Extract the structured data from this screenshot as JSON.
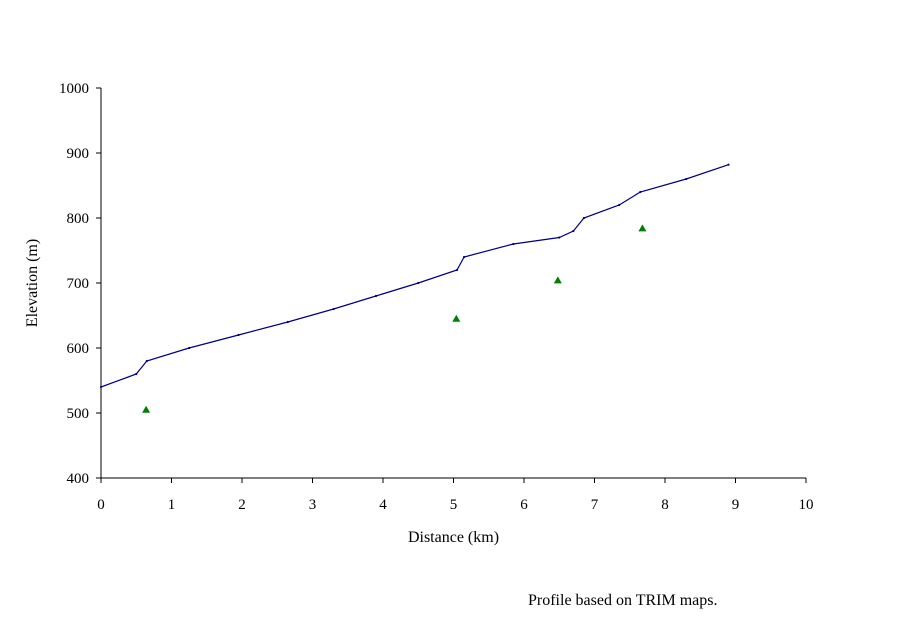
{
  "chart_data": {
    "type": "line",
    "title": "",
    "xlabel": "Distance (km)",
    "ylabel": "Elevation (m)",
    "xlim": [
      0,
      10
    ],
    "ylim": [
      400,
      1000
    ],
    "x_ticks": [
      0,
      1,
      2,
      3,
      4,
      5,
      6,
      7,
      8,
      9,
      10
    ],
    "y_ticks": [
      400,
      500,
      600,
      700,
      800,
      900,
      1000
    ],
    "grid": false,
    "legend": "none",
    "series": [
      {
        "mark": "line",
        "color": "#00007f",
        "x": [
          0,
          0.5,
          0.65,
          1.25,
          1.95,
          2.65,
          3.3,
          3.9,
          4.5,
          5.05,
          5.15,
          5.85,
          6.5,
          6.7,
          6.85,
          7.35,
          7.65,
          8.3,
          8.9
        ],
        "y": [
          540,
          560,
          580,
          600,
          620,
          640,
          660,
          680,
          700,
          720,
          740,
          760,
          770,
          780,
          800,
          820,
          840,
          860,
          882
        ]
      },
      {
        "mark": "triangle",
        "color": "#007f00",
        "x": [
          0.64,
          5.04,
          6.48,
          7.68
        ],
        "y": [
          505,
          645,
          704,
          784
        ]
      }
    ]
  },
  "note": "Profile based on TRIM maps."
}
